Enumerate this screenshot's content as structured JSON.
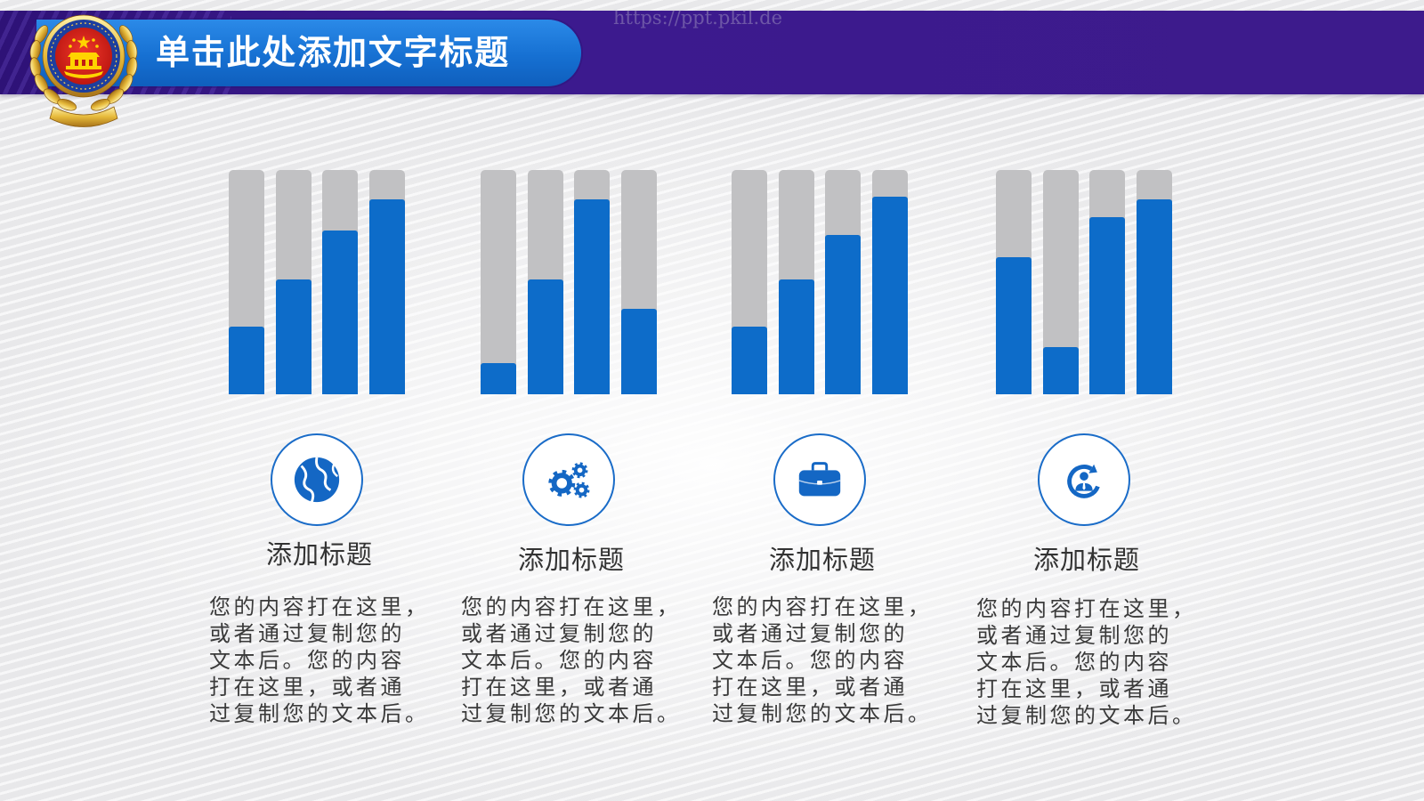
{
  "watermark": "https://ppt.pkil.de",
  "header": {
    "logo_icon": "police-emblem-icon",
    "title": "单击此处添加文字标题"
  },
  "colors": {
    "header_band": "#3b1a8c",
    "title_pill": "#1670d2",
    "bar_fill": "#0d6cc9",
    "bar_track": "#c1c1c3",
    "icon": "#1467c4",
    "text": "#3a3a3a"
  },
  "items": [
    {
      "icon": "globe-icon",
      "title": "添加标题",
      "body": [
        "您的内容打在这里，",
        "或者通过复制您的",
        "文本后。您的内容",
        "打在这里，或者通",
        "过复制您的文本后。"
      ]
    },
    {
      "icon": "gears-icon",
      "title": "添加标题",
      "body": [
        "您的内容打在这里，",
        "或者通过复制您的",
        "文本后。您的内容",
        "打在这里，或者通",
        "过复制您的文本后。"
      ]
    },
    {
      "icon": "briefcase-icon",
      "title": "添加标题",
      "body": [
        "您的内容打在这里，",
        "或者通过复制您的",
        "文本后。您的内容",
        "打在这里，或者通",
        "过复制您的文本后。"
      ]
    },
    {
      "icon": "user-refresh-icon",
      "title": "添加标题",
      "body": [
        "您的内容打在这里，",
        "或者通过复制您的",
        "文本后。您的内容",
        "打在这里，或者通",
        "过复制您的文本后。"
      ]
    }
  ],
  "chart_data": [
    {
      "type": "bar",
      "values": [
        0.3,
        0.51,
        0.73,
        0.87
      ],
      "ylim": [
        0,
        1
      ],
      "grid": false
    },
    {
      "type": "bar",
      "values": [
        0.14,
        0.51,
        0.87,
        0.38
      ],
      "ylim": [
        0,
        1
      ],
      "grid": false
    },
    {
      "type": "bar",
      "values": [
        0.3,
        0.51,
        0.71,
        0.88
      ],
      "ylim": [
        0,
        1
      ],
      "grid": false
    },
    {
      "type": "bar",
      "values": [
        0.61,
        0.21,
        0.79,
        0.87
      ],
      "ylim": [
        0,
        1
      ],
      "grid": false
    }
  ]
}
